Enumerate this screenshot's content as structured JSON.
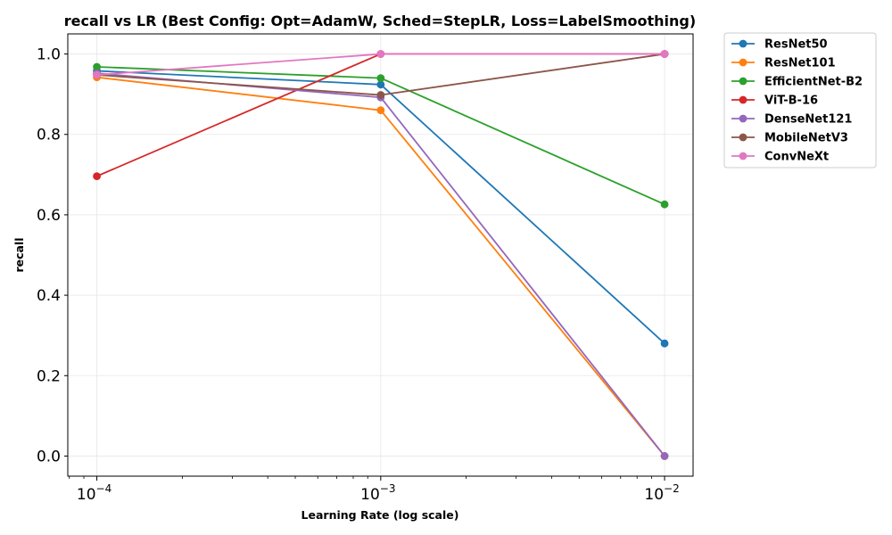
{
  "chart_data": {
    "type": "line",
    "title": "recall vs LR (Best Config: Opt=AdamW, Sched=StepLR, Loss=LabelSmoothing)",
    "xlabel": "Learning Rate (log scale)",
    "ylabel": "recall",
    "xscale": "log",
    "x": [
      0.0001,
      0.001,
      0.01
    ],
    "x_tick_labels": [
      {
        "base": "10",
        "exp": "−4"
      },
      {
        "base": "10",
        "exp": "−3"
      },
      {
        "base": "10",
        "exp": "−2"
      }
    ],
    "y_ticks": [
      0.0,
      0.2,
      0.4,
      0.6,
      0.8,
      1.0
    ],
    "y_tick_labels": [
      "0.0",
      "0.2",
      "0.4",
      "0.6",
      "0.8",
      "1.0"
    ],
    "xlim": [
      7.9e-05,
      0.0126
    ],
    "ylim": [
      -0.05,
      1.05
    ],
    "grid": true,
    "legend_position": "outside-top-right",
    "series": [
      {
        "name": "ResNet50",
        "color": "#1f77b4",
        "values": [
          0.958,
          0.924,
          0.28
        ]
      },
      {
        "name": "ResNet101",
        "color": "#ff7f0e",
        "values": [
          0.942,
          0.86,
          0.0
        ]
      },
      {
        "name": "EfficientNet-B2",
        "color": "#2ca02c",
        "values": [
          0.968,
          0.94,
          0.626
        ]
      },
      {
        "name": "ViT-B-16",
        "color": "#d62728",
        "values": [
          0.696,
          1.0,
          1.0
        ]
      },
      {
        "name": "DenseNet121",
        "color": "#9467bd",
        "values": [
          0.952,
          0.892,
          0.0
        ]
      },
      {
        "name": "MobileNetV3",
        "color": "#8c564b",
        "values": [
          0.948,
          0.898,
          1.0
        ]
      },
      {
        "name": "ConvNeXt",
        "color": "#e377c2",
        "values": [
          0.948,
          1.0,
          1.0
        ]
      }
    ]
  }
}
